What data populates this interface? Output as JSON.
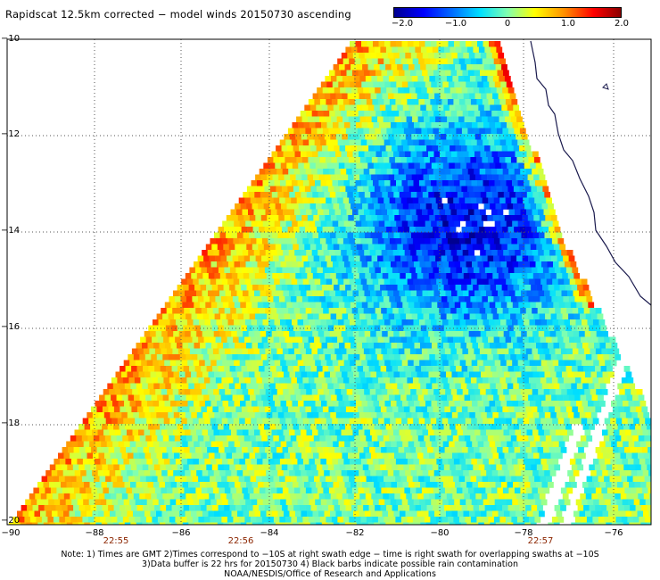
{
  "title": "Rapidscat 12.5km corrected − model winds 20150730 ascending",
  "colorbar": {
    "labels": [
      "−2.0",
      "−1.0",
      "0",
      "1.0",
      "2.0"
    ],
    "min": -2.0,
    "max": 2.0
  },
  "latitude_labels": [
    "−10",
    "−12",
    "−14",
    "−16",
    "−18",
    "−20"
  ],
  "longitude_labels": [
    "−90",
    "−88",
    "−86",
    "−84",
    "−82",
    "−80",
    "−78",
    "−76"
  ],
  "time_labels": [
    "22:55",
    "22:56",
    "22:57"
  ],
  "notes": {
    "line1": "Note: 1) Times are GMT 2)Times correspond to −10S at right swath edge − time is right swath for overlapping swaths at −10S",
    "line2": "3)Data buffer is 22 hrs for 20150730 4) Black barbs indicate possible rain contamination",
    "line3": "NOAA/NESDIS/Office of Research and Applications"
  },
  "colors": {
    "grid": "#555555",
    "coast": "#1a1a4d",
    "time_label": "#8b2500"
  }
}
